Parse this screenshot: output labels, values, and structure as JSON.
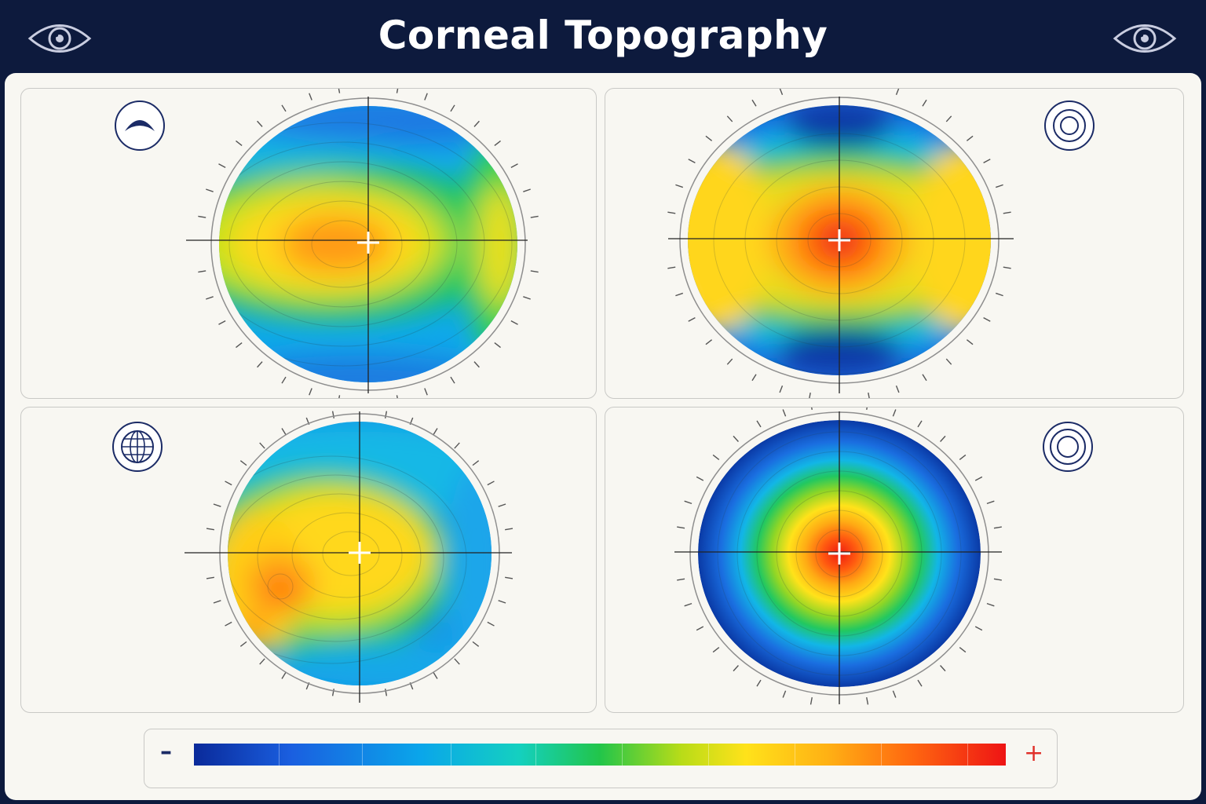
{
  "header": {
    "title": "Corneal Topography"
  },
  "icons": {
    "header_left": "eye-icon",
    "header_right": "eye-icon",
    "panel1": "curvature-arc-icon",
    "panel2": "concentric-rings-icon",
    "panel3": "globe-icon",
    "panel4": "concentric-rings-icon"
  },
  "legend": {
    "min_symbol": "–",
    "max_symbol": "+"
  },
  "colors": {
    "header_bg": "#0d1a3d",
    "scale_low": "#0a2a9a",
    "scale_mid": "#22c54a",
    "scale_high": "#ee1414"
  }
}
